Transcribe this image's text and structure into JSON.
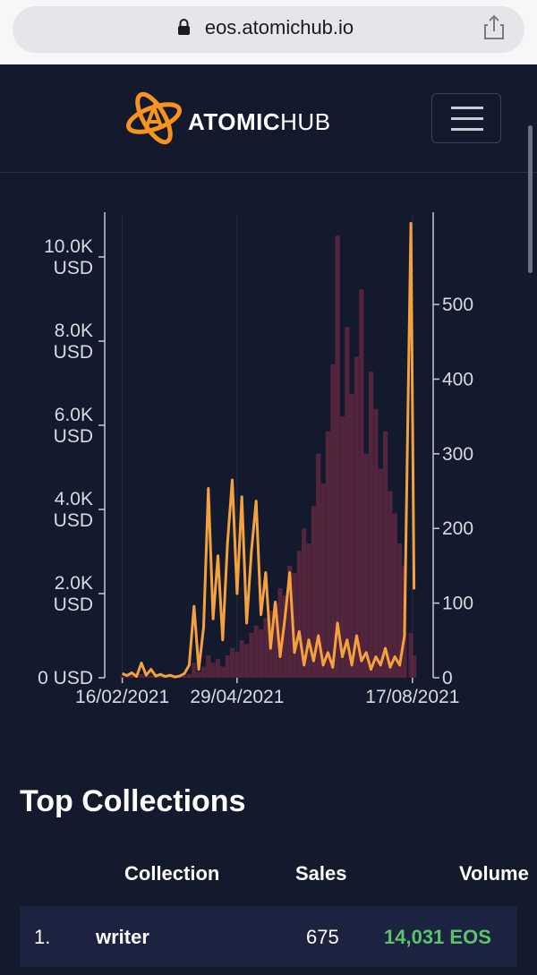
{
  "browser": {
    "url": "eos.atomichub.io"
  },
  "header": {
    "brand_bold": "ATOMIC",
    "brand_light": "HUB"
  },
  "chart_data": {
    "type": "line",
    "x": [
      "16/02/2021",
      "19/02/2021",
      "22/02/2021",
      "25/02/2021",
      "28/02/2021",
      "03/03/2021",
      "06/03/2021",
      "09/03/2021",
      "12/03/2021",
      "15/03/2021",
      "18/03/2021",
      "21/03/2021",
      "24/03/2021",
      "27/03/2021",
      "30/03/2021",
      "02/04/2021",
      "05/04/2021",
      "08/04/2021",
      "11/04/2021",
      "14/04/2021",
      "17/04/2021",
      "20/04/2021",
      "23/04/2021",
      "26/04/2021",
      "29/04/2021",
      "02/05/2021",
      "05/05/2021",
      "08/05/2021",
      "11/05/2021",
      "14/05/2021",
      "17/05/2021",
      "20/05/2021",
      "23/05/2021",
      "26/05/2021",
      "29/05/2021",
      "01/06/2021",
      "04/06/2021",
      "07/06/2021",
      "10/06/2021",
      "13/06/2021",
      "16/06/2021",
      "19/06/2021",
      "22/06/2021",
      "25/06/2021",
      "28/06/2021",
      "01/07/2021",
      "04/07/2021",
      "07/07/2021",
      "10/07/2021",
      "13/07/2021",
      "16/07/2021",
      "19/07/2021",
      "22/07/2021",
      "25/07/2021",
      "28/07/2021",
      "31/07/2021",
      "03/08/2021",
      "06/08/2021",
      "09/08/2021",
      "12/08/2021",
      "16/08/2021",
      "18/08/2021"
    ],
    "series": [
      {
        "type": "bar",
        "axis": "y2",
        "color": "#5e2840",
        "values": [
          2,
          1,
          3,
          1,
          5,
          2,
          3,
          1,
          2,
          1,
          2,
          1,
          2,
          3,
          5,
          20,
          8,
          15,
          30,
          20,
          25,
          15,
          30,
          40,
          35,
          50,
          45,
          60,
          70,
          65,
          80,
          90,
          100,
          120,
          110,
          150,
          140,
          170,
          200,
          180,
          230,
          300,
          260,
          330,
          420,
          592,
          350,
          470,
          380,
          430,
          520,
          300,
          410,
          360,
          280,
          330,
          250,
          220,
          180,
          150,
          60,
          30
        ]
      },
      {
        "type": "line",
        "color": "#f5a23e",
        "values": [
          100,
          50,
          120,
          30,
          350,
          60,
          200,
          40,
          80,
          30,
          60,
          20,
          40,
          100,
          300,
          1700,
          200,
          1200,
          4500,
          1400,
          2900,
          900,
          3200,
          4700,
          2000,
          4300,
          1300,
          3000,
          4200,
          1500,
          2500,
          700,
          1800,
          500,
          1400,
          2500,
          600,
          1100,
          300,
          900,
          400,
          1000,
          300,
          600,
          250,
          1300,
          500,
          900,
          300,
          1000,
          400,
          600,
          200,
          500,
          300,
          700,
          250,
          500,
          300,
          1000,
          10800,
          2100
        ]
      }
    ],
    "xlim": [
      "05/02/2021",
      "30/08/2021"
    ],
    "xticks": [
      "16/02/2021",
      "29/04/2021",
      "17/08/2021"
    ],
    "ylim": [
      0,
      11000
    ],
    "yticks": [
      {
        "value": 0,
        "label": "0 USD"
      },
      {
        "value": 2000,
        "label": "2.0K USD"
      },
      {
        "value": 4000,
        "label": "4.0K USD"
      },
      {
        "value": 6000,
        "label": "6.0K USD"
      },
      {
        "value": 8000,
        "label": "8.0K USD"
      },
      {
        "value": 10000,
        "label": "10.0K USD"
      }
    ],
    "y2lim": [
      0,
      620
    ],
    "y2ticks": [
      0,
      100,
      200,
      300,
      400,
      500
    ],
    "grid": true
  },
  "collections": {
    "title": "Top Collections",
    "columns": [
      "Collection",
      "Sales",
      "Volume"
    ],
    "rows": [
      [
        "1.",
        "writer",
        "675",
        "14,031 EOS"
      ]
    ]
  }
}
